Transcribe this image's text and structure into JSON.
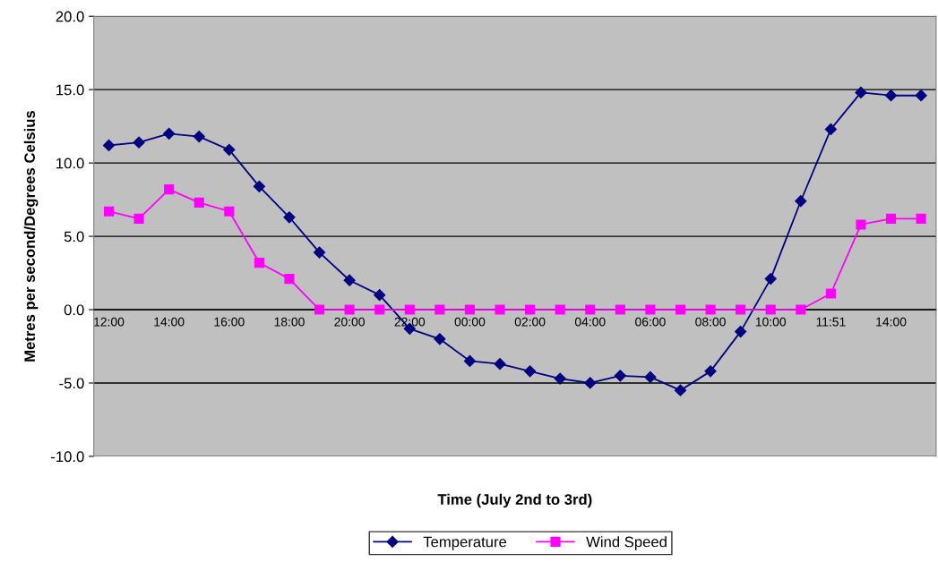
{
  "chart_data": {
    "type": "line",
    "xlabel": "Time (July 2nd to 3rd)",
    "ylabel": "Metres per second/Degrees Celsius",
    "categories": [
      "12:00",
      null,
      "14:00",
      null,
      "16:00",
      null,
      "18:00",
      null,
      "20:00",
      null,
      "22:00",
      null,
      "00:00",
      null,
      "02:00",
      null,
      "04:00",
      null,
      "06:00",
      null,
      "08:00",
      null,
      "10:00",
      null,
      "11:51",
      null,
      "14:00",
      null
    ],
    "series": [
      {
        "name": "Temperature",
        "color": "#000080",
        "marker": "diamond",
        "values": [
          11.2,
          11.4,
          12.0,
          11.8,
          10.9,
          8.4,
          6.3,
          3.9,
          2.0,
          1.0,
          -1.3,
          -2.0,
          -3.5,
          -3.7,
          -4.2,
          -4.7,
          -5.0,
          -4.5,
          -4.6,
          -5.5,
          -4.2,
          -1.5,
          2.1,
          7.4,
          12.3,
          14.8,
          14.6,
          14.6
        ]
      },
      {
        "name": "Wind Speed",
        "color": "#ff00ff",
        "marker": "square",
        "values": [
          6.7,
          6.2,
          8.2,
          7.3,
          6.7,
          3.2,
          2.1,
          0,
          0,
          0,
          0,
          0,
          0,
          0,
          0,
          0,
          0,
          0,
          0,
          0,
          0,
          0,
          0,
          0,
          1.1,
          5.8,
          6.2,
          6.2
        ]
      }
    ],
    "ylim": [
      -10,
      20
    ],
    "yticks": [
      {
        "value": -10,
        "label": "-10.0"
      },
      {
        "value": -5,
        "label": "-5.0"
      },
      {
        "value": 0,
        "label": "0.0"
      },
      {
        "value": 5,
        "label": "5.0"
      },
      {
        "value": 10,
        "label": "10.0"
      },
      {
        "value": 15,
        "label": "15.0"
      },
      {
        "value": 20,
        "label": "20.0"
      }
    ],
    "grid": "y",
    "legend": "bottom",
    "line_style": "solid"
  }
}
